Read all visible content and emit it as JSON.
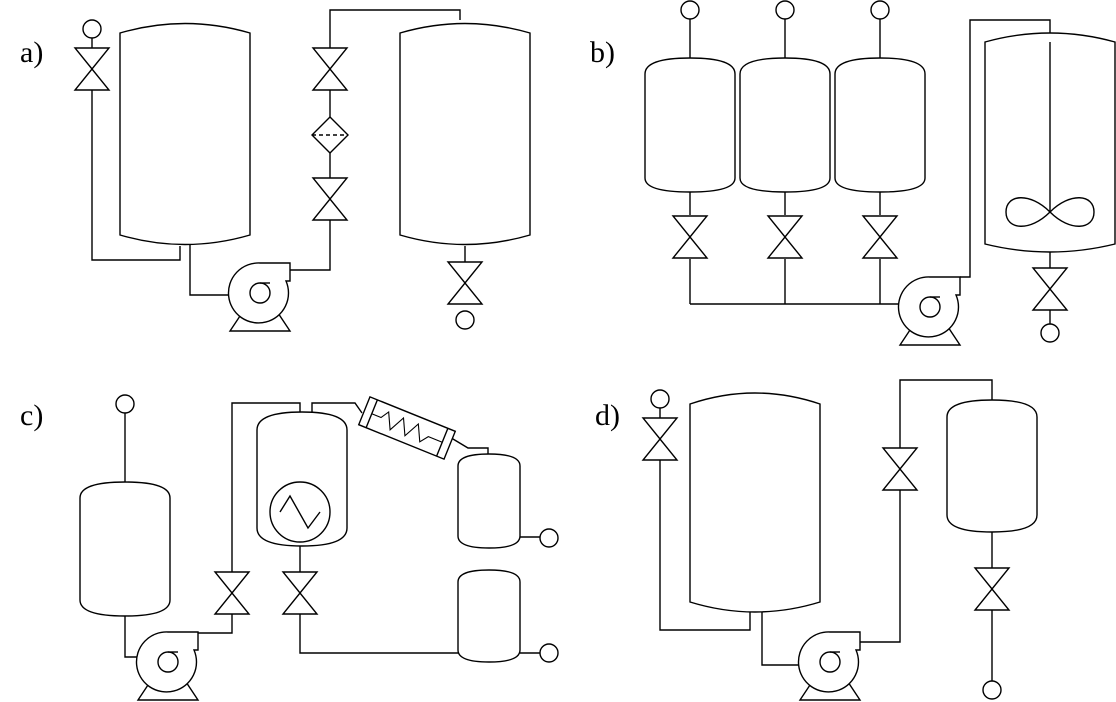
{
  "panels": [
    {
      "id": "a",
      "label": "a)"
    },
    {
      "id": "b",
      "label": "b)"
    },
    {
      "id": "c",
      "label": "c)"
    },
    {
      "id": "d",
      "label": "d)"
    }
  ]
}
